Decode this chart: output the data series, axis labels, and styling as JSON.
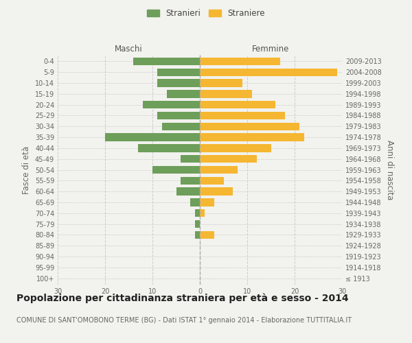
{
  "age_groups": [
    "100+",
    "95-99",
    "90-94",
    "85-89",
    "80-84",
    "75-79",
    "70-74",
    "65-69",
    "60-64",
    "55-59",
    "50-54",
    "45-49",
    "40-44",
    "35-39",
    "30-34",
    "25-29",
    "20-24",
    "15-19",
    "10-14",
    "5-9",
    "0-4"
  ],
  "birth_years": [
    "≤ 1913",
    "1914-1918",
    "1919-1923",
    "1924-1928",
    "1929-1933",
    "1934-1938",
    "1939-1943",
    "1944-1948",
    "1949-1953",
    "1954-1958",
    "1959-1963",
    "1964-1968",
    "1969-1973",
    "1974-1978",
    "1979-1983",
    "1984-1988",
    "1989-1993",
    "1994-1998",
    "1999-2003",
    "2004-2008",
    "2009-2013"
  ],
  "maschi": [
    0,
    0,
    0,
    0,
    1,
    1,
    1,
    2,
    5,
    4,
    10,
    4,
    13,
    20,
    8,
    9,
    12,
    7,
    9,
    9,
    14
  ],
  "femmine": [
    0,
    0,
    0,
    0,
    3,
    0,
    1,
    3,
    7,
    5,
    8,
    12,
    15,
    22,
    21,
    18,
    16,
    11,
    9,
    29,
    17
  ],
  "color_maschi": "#6d9e5a",
  "color_femmine": "#f5b731",
  "background_color": "#f2f2ee",
  "title": "Popolazione per cittadinanza straniera per età e sesso - 2014",
  "subtitle": "COMUNE DI SANT'OMOBONO TERME (BG) - Dati ISTAT 1° gennaio 2014 - Elaborazione TUTTITALIA.IT",
  "xlabel_left": "Maschi",
  "xlabel_right": "Femmine",
  "ylabel_left": "Fasce di età",
  "ylabel_right": "Anni di nascita",
  "legend_maschi": "Stranieri",
  "legend_femmine": "Straniere",
  "xlim": 30,
  "title_fontsize": 10,
  "subtitle_fontsize": 7,
  "tick_fontsize": 7,
  "label_fontsize": 8.5
}
